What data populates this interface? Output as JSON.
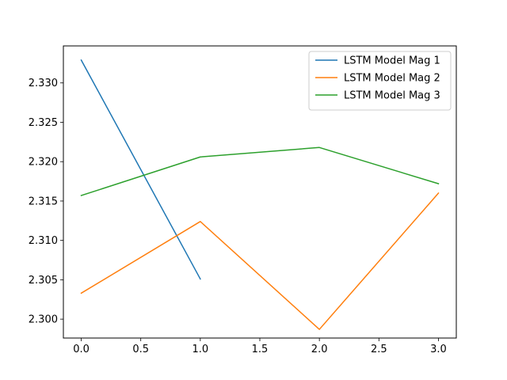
{
  "chart_data": {
    "type": "line",
    "title": "",
    "xlabel": "",
    "ylabel": "",
    "xlim": [
      -0.15,
      3.15
    ],
    "ylim": [
      2.2976,
      3.0
    ],
    "ylim_actual": [
      2.2976,
      2.3347
    ],
    "x_ticks": [
      "0.0",
      "0.5",
      "1.0",
      "1.5",
      "2.0",
      "2.5",
      "3.0"
    ],
    "y_ticks": [
      "2.300",
      "2.305",
      "2.310",
      "2.315",
      "2.320",
      "2.325",
      "2.330"
    ],
    "grid": false,
    "legend_position": "top-right",
    "series": [
      {
        "name": "LSTM Model Mag 1",
        "color": "#1f77b4",
        "x": [
          0,
          1
        ],
        "y": [
          2.3329,
          2.3051
        ]
      },
      {
        "name": "LSTM Model Mag 2",
        "color": "#ff7f0e",
        "x": [
          0,
          1,
          2,
          3
        ],
        "y": [
          2.3033,
          2.3124,
          2.2987,
          2.316
        ]
      },
      {
        "name": "LSTM Model Mag 3",
        "color": "#2ca02c",
        "x": [
          0,
          1,
          2,
          3
        ],
        "y": [
          2.3157,
          2.3206,
          2.3218,
          2.3172
        ]
      }
    ]
  }
}
